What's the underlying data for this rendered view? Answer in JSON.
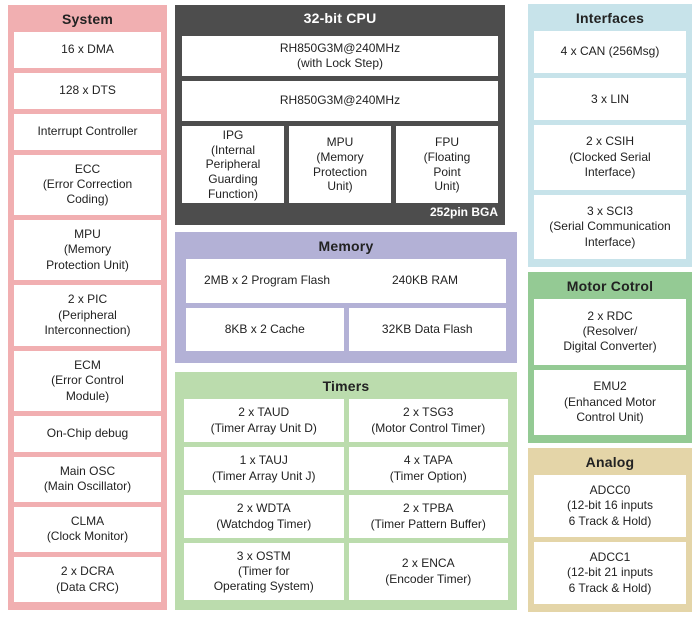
{
  "colors": {
    "system_bg": "#f1afb1",
    "cpu_bg": "#4d4d4d",
    "memory_bg": "#b3b1d6",
    "timers_bg": "#bbdcad",
    "interfaces_bg": "#c7e3ea",
    "motor_bg": "#94ca94",
    "analog_bg": "#e4d5a8",
    "box_bg": "#ffffff",
    "text": "#222222",
    "cpu_text": "#ffffff"
  },
  "system": {
    "title": "System",
    "items": [
      "16 x DMA",
      "128 x DTS",
      "Interrupt Controller",
      "ECC\n(Error Correction\nCoding)",
      "MPU\n(Memory\nProtection Unit)",
      "2 x PIC\n(Peripheral\nInterconnection)",
      "ECM\n(Error Control\nModule)",
      "On-Chip debug",
      "Main OSC\n(Main Oscillator)",
      "CLMA\n(Clock Monitor)",
      "2 x DCRA\n(Data CRC)"
    ]
  },
  "cpu": {
    "title": "32-bit CPU",
    "cores": [
      "RH850G3M@240MHz\n(with Lock Step)",
      "RH850G3M@240MHz"
    ],
    "units": [
      "IPG\n(Internal\nPeripheral\nGuarding\nFunction)",
      "MPU\n(Memory\nProtection\nUnit)",
      "FPU\n(Floating\nPoint\nUnit)"
    ],
    "package": "252pin BGA"
  },
  "memory": {
    "title": "Memory",
    "program_flash": "2MB x 2 Program Flash",
    "ram": "240KB RAM",
    "cache": "8KB x 2 Cache",
    "data_flash": "32KB Data Flash"
  },
  "timers": {
    "title": "Timers",
    "cells": [
      "2 x TAUD\n(Timer Array Unit D)",
      "2 x TSG3\n(Motor Control Timer)",
      "1 x TAUJ\n(Timer Array Unit J)",
      "4 x TAPA\n(Timer Option)",
      "2 x WDTA\n(Watchdog Timer)",
      "2 x TPBA\n(Timer Pattern Buffer)",
      "3 x OSTM\n(Timer for\nOperating System)",
      "2 x ENCA\n(Encoder Timer)"
    ]
  },
  "interfaces": {
    "title": "Interfaces",
    "items": [
      "4 x CAN (256Msg)",
      "3 x LIN",
      "2 x CSIH\n(Clocked Serial\nInterface)",
      "3 x SCI3\n(Serial Communication\nInterface)"
    ]
  },
  "motor_control": {
    "title": "Motor Cotrol",
    "items": [
      "2 x RDC\n(Resolver/\nDigital Converter)",
      "EMU2\n(Enhanced Motor\nControl Unit)"
    ]
  },
  "analog": {
    "title": "Analog",
    "items": [
      "ADCC0\n(12-bit 16 inputs\n6 Track & Hold)",
      "ADCC1\n(12-bit 21 inputs\n6 Track & Hold)"
    ]
  }
}
